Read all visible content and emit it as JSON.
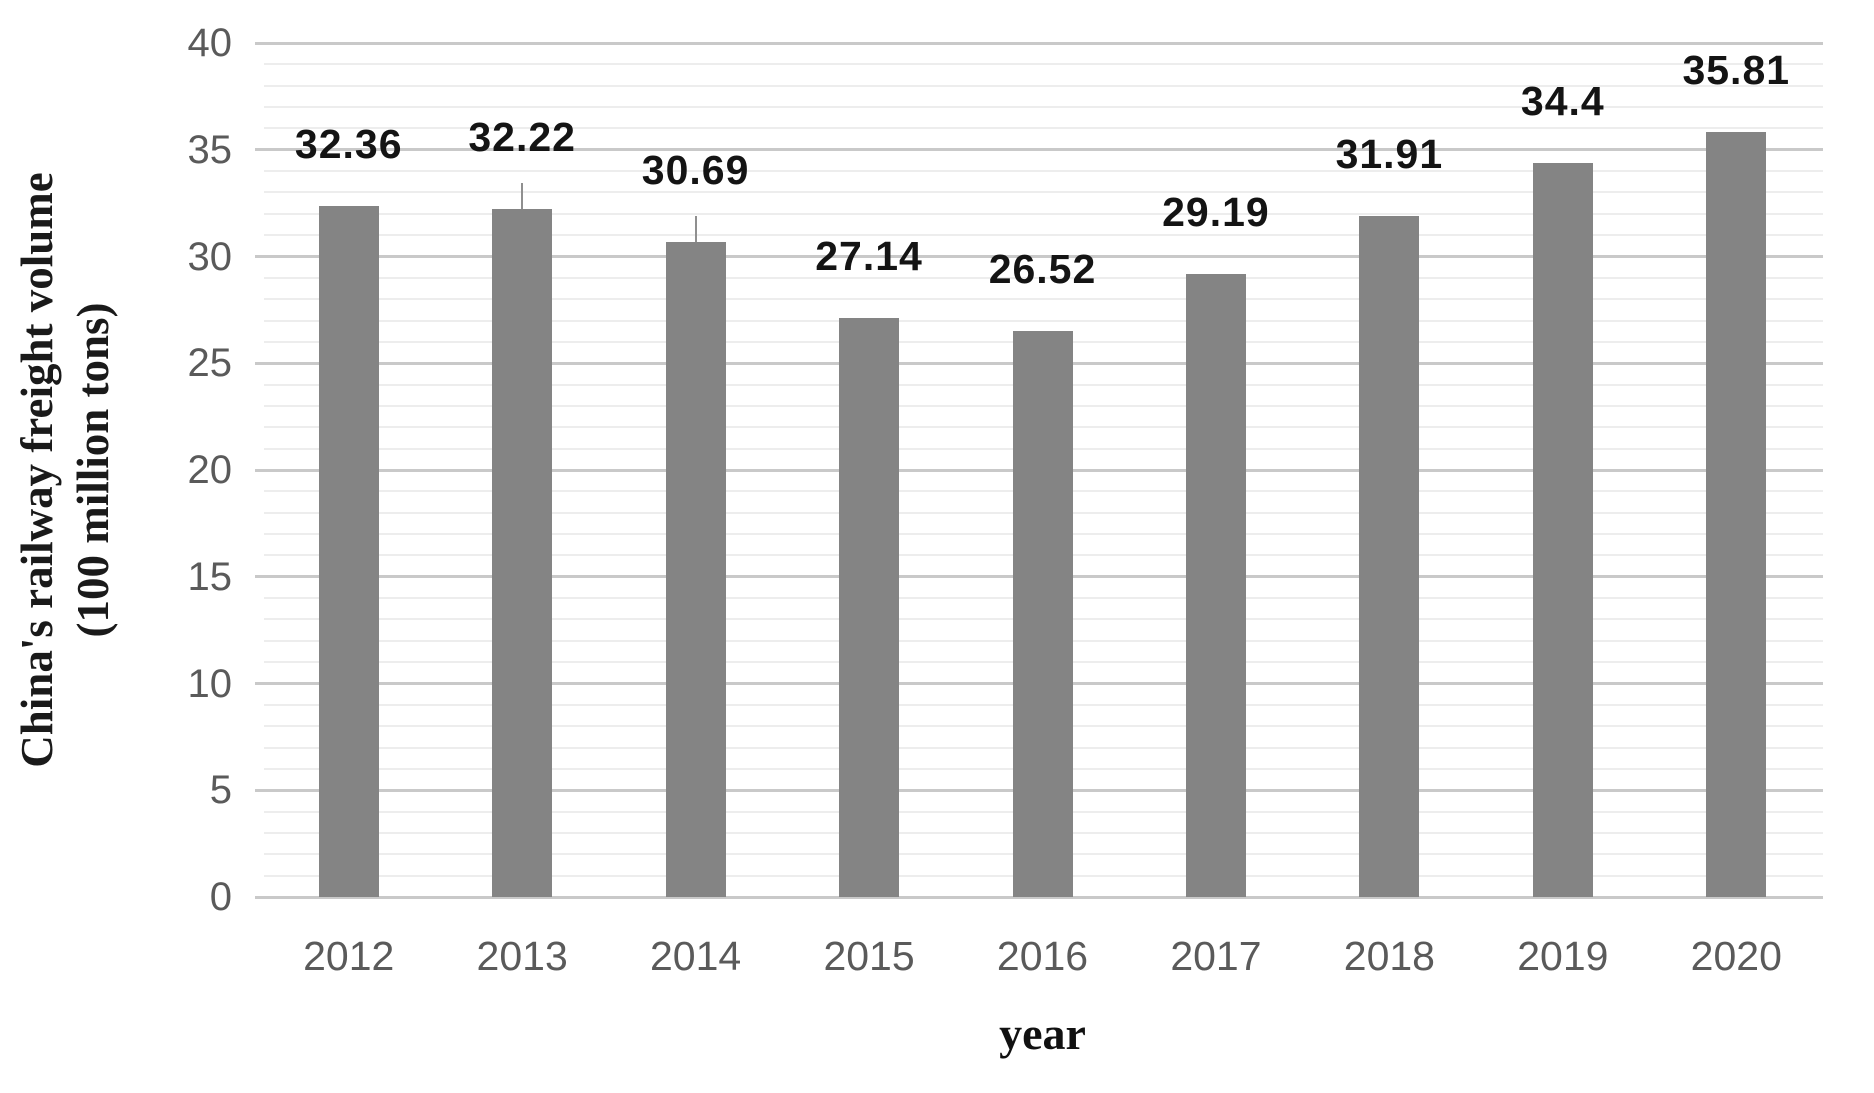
{
  "chart_data": {
    "type": "bar",
    "categories": [
      "2012",
      "2013",
      "2014",
      "2015",
      "2016",
      "2017",
      "2018",
      "2019",
      "2020"
    ],
    "values": [
      32.36,
      32.22,
      30.69,
      27.14,
      26.52,
      29.19,
      31.91,
      34.4,
      35.81
    ],
    "value_labels": [
      "32.36",
      "32.22",
      "30.69",
      "27.14",
      "26.52",
      "29.19",
      "31.91",
      "34.4",
      "35.81"
    ],
    "title": "",
    "xlabel": "year",
    "ylabel_line1": "China's railway freight volume",
    "ylabel_line2": "(100 million tons)",
    "ylim": [
      0,
      40
    ],
    "y_major_ticks": [
      "0",
      "5",
      "10",
      "15",
      "20",
      "25",
      "30",
      "35",
      "40"
    ],
    "y_minor_unit": 1,
    "grid": "horizontal, major and minor, no plot border, no y-axis line",
    "legend": "none",
    "callout_bars": [
      "2013",
      "2014"
    ],
    "colors": {
      "bar": "#848484",
      "major_gridline": "#c9c9c9",
      "minor_gridline": "#ededed",
      "tick_label": "#5a5a5a",
      "value_label": "#141414",
      "axis_title": "#1a1a1a",
      "leader_line": "#8f8f8f",
      "background": "#ffffff"
    }
  }
}
